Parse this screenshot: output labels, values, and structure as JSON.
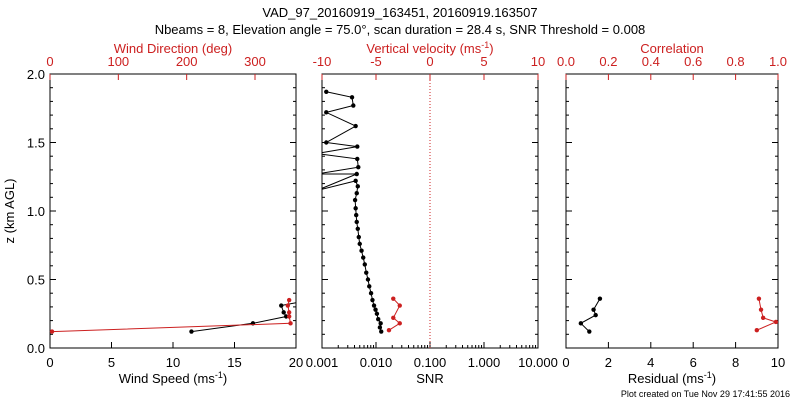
{
  "header": {
    "title": "VAD_97_20160919_163451, 20160919.163507",
    "subtitle": "Nbeams = 8, Elevation angle = 75.0°, scan duration = 28.4 s, SNR Threshold = 0.008"
  },
  "footer": "Plot created on Tue Nov 29 17:41:55 2016",
  "colors": {
    "black": "#000000",
    "red": "#cc2020"
  },
  "chart_data": [
    {
      "type": "line",
      "ylabel": "z (km AGL)",
      "ylim": [
        0,
        2
      ],
      "yticks": [
        "0.0",
        "0.5",
        "1.0",
        "1.5",
        "2.0"
      ],
      "bottom_axis": {
        "label": "Wind Speed (ms",
        "label_sup": "-1",
        "label_end": ")",
        "xlim": [
          0,
          20
        ],
        "ticks": [
          "0",
          "5",
          "10",
          "15",
          "20"
        ]
      },
      "top_axis": {
        "label": "Wind Direction (deg)",
        "xlim": [
          0,
          360
        ],
        "ticks": [
          "0",
          "100",
          "200",
          "300"
        ]
      },
      "series": [
        {
          "axis": "bottom",
          "color": "#000000",
          "points": [
            [
              11.5,
              0.12
            ],
            [
              16.5,
              0.18
            ],
            [
              19.2,
              0.23
            ],
            [
              19.0,
              0.26
            ],
            [
              18.8,
              0.31
            ],
            [
              20.0,
              0.33
            ]
          ]
        },
        {
          "axis": "top",
          "color": "#cc2020",
          "points": [
            [
              3,
              0.12
            ],
            [
              352,
              0.18
            ],
            [
              350,
              0.23
            ],
            [
              350,
              0.26
            ],
            [
              348,
              0.31
            ],
            [
              350,
              0.35
            ]
          ]
        }
      ]
    },
    {
      "type": "line",
      "ylim": [
        0,
        2
      ],
      "bottom_axis": {
        "label": "SNR",
        "xlim": [
          0.001,
          10
        ],
        "scale": "log",
        "ticks": [
          "0.001",
          "0.010",
          "0.100",
          "1.000",
          "10.000"
        ]
      },
      "top_axis": {
        "label": "Vertical velocity (ms",
        "label_sup": "-1",
        "label_end": ")",
        "xlim": [
          -10,
          10
        ],
        "ticks": [
          "-10",
          "-5",
          "0",
          "5",
          "10"
        ],
        "zero_line": true
      },
      "series": [
        {
          "axis": "bottom",
          "color": "#000000",
          "points": [
            [
              0.0125,
              0.12
            ],
            [
              0.0118,
              0.15
            ],
            [
              0.0122,
              0.18
            ],
            [
              0.011,
              0.21
            ],
            [
              0.0104,
              0.25
            ],
            [
              0.0098,
              0.28
            ],
            [
              0.0092,
              0.31
            ],
            [
              0.0086,
              0.35
            ],
            [
              0.0081,
              0.4
            ],
            [
              0.0075,
              0.45
            ],
            [
              0.0071,
              0.5
            ],
            [
              0.0066,
              0.55
            ],
            [
              0.0062,
              0.61
            ],
            [
              0.0058,
              0.66
            ],
            [
              0.0054,
              0.71
            ],
            [
              0.005,
              0.76
            ],
            [
              0.0048,
              0.81
            ],
            [
              0.0046,
              0.87
            ],
            [
              0.0044,
              0.92
            ],
            [
              0.0043,
              0.97
            ],
            [
              0.0042,
              1.02
            ],
            [
              0.0041,
              1.08
            ],
            [
              0.0044,
              1.13
            ],
            [
              0.0046,
              1.18
            ],
            [
              0.0042,
              1.22
            ],
            [
              0.0008,
              1.15
            ],
            [
              0.0044,
              1.27
            ],
            [
              0.0008,
              1.27
            ],
            [
              0.0047,
              1.32
            ],
            [
              0.0045,
              1.38
            ],
            [
              0.0008,
              1.42
            ],
            [
              0.0045,
              1.47
            ],
            [
              0.0012,
              1.5
            ],
            [
              0.0042,
              1.62
            ],
            [
              0.0012,
              1.72
            ],
            [
              0.0038,
              1.77
            ],
            [
              0.0036,
              1.83
            ],
            [
              0.0012,
              1.87
            ]
          ]
        },
        {
          "axis": "top",
          "color": "#cc2020",
          "points": [
            [
              -3.8,
              0.13
            ],
            [
              -2.8,
              0.18
            ],
            [
              -3.4,
              0.22
            ],
            [
              -2.8,
              0.31
            ],
            [
              -3.4,
              0.36
            ]
          ]
        }
      ]
    },
    {
      "type": "line",
      "ylim": [
        0,
        2
      ],
      "bottom_axis": {
        "label": "Residual (ms",
        "label_sup": "-1",
        "label_end": ")",
        "xlim": [
          0,
          10
        ],
        "ticks": [
          "0",
          "2",
          "4",
          "6",
          "8",
          "10"
        ]
      },
      "top_axis": {
        "label": "Correlation",
        "xlim": [
          0,
          1
        ],
        "ticks": [
          "0.0",
          "0.2",
          "0.4",
          "0.6",
          "0.8",
          "1.0"
        ]
      },
      "series": [
        {
          "axis": "bottom",
          "color": "#000000",
          "points": [
            [
              1.1,
              0.12
            ],
            [
              0.7,
              0.18
            ],
            [
              1.4,
              0.24
            ],
            [
              1.3,
              0.28
            ],
            [
              1.6,
              0.36
            ]
          ]
        },
        {
          "axis": "top",
          "color": "#cc2020",
          "points": [
            [
              0.9,
              0.13
            ],
            [
              0.99,
              0.19
            ],
            [
              0.93,
              0.22
            ],
            [
              0.92,
              0.28
            ],
            [
              0.91,
              0.36
            ]
          ]
        }
      ]
    }
  ]
}
